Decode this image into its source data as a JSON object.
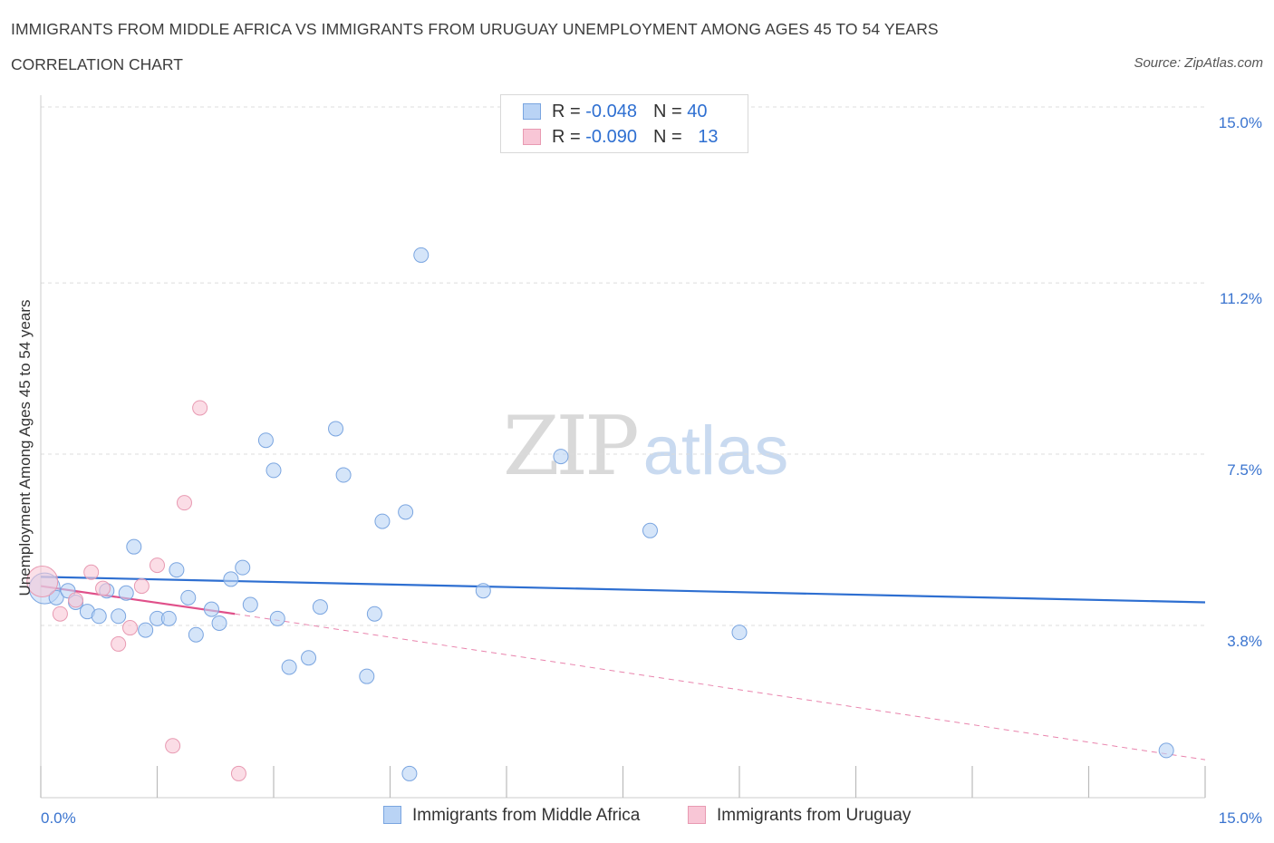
{
  "header": {
    "title": "IMMIGRANTS FROM MIDDLE AFRICA VS IMMIGRANTS FROM URUGUAY UNEMPLOYMENT AMONG AGES 45 TO 54 YEARS",
    "subtitle": "CORRELATION CHART",
    "source": "Source: ZipAtlas.com"
  },
  "watermark": {
    "zip": "ZIP",
    "atlas": "atlas"
  },
  "legend": {
    "rows": [
      {
        "r_label": "R = ",
        "r_value": "-0.048",
        "n_label": "N = ",
        "n_value": "40"
      },
      {
        "r_label": "R = ",
        "r_value": "-0.090",
        "n_label": "N = ",
        "n_value": "13"
      }
    ]
  },
  "colors": {
    "blue_fill": "#b9d3f5",
    "blue_stroke": "#7aa5e0",
    "blue_line": "#2e6fd1",
    "pink_fill": "#f8c6d6",
    "pink_stroke": "#e89ab2",
    "pink_line": "#e0508a",
    "axis_text": "#3a74cf",
    "grid": "#dcdcdc"
  },
  "chart_data": {
    "type": "scatter",
    "title": "IMMIGRANTS FROM MIDDLE AFRICA VS IMMIGRANTS FROM URUGUAY UNEMPLOYMENT AMONG AGES 45 TO 54 YEARS",
    "xlabel": "",
    "ylabel": "Unemployment Among Ages 45 to 54 years",
    "xlim": [
      0,
      15
    ],
    "ylim": [
      0,
      15
    ],
    "x_tick_labels": [
      "0.0%",
      "15.0%"
    ],
    "y_ticks": [
      {
        "value": 15.0,
        "label": "15.0%"
      },
      {
        "value": 11.2,
        "label": "11.2%"
      },
      {
        "value": 7.5,
        "label": "7.5%"
      },
      {
        "value": 3.8,
        "label": "3.8%"
      }
    ],
    "grid": true,
    "legend_position": "bottom-center",
    "series": [
      {
        "name": "Immigrants from Middle Africa",
        "color": "#b9d3f5",
        "R": -0.048,
        "N": 40,
        "trend": {
          "x": [
            0,
            15
          ],
          "y": [
            4.85,
            4.3
          ]
        },
        "points": [
          {
            "x": 0.05,
            "y": 4.6,
            "big": true
          },
          {
            "x": 0.2,
            "y": 4.4
          },
          {
            "x": 0.35,
            "y": 4.55
          },
          {
            "x": 0.45,
            "y": 4.3
          },
          {
            "x": 0.6,
            "y": 4.1
          },
          {
            "x": 0.75,
            "y": 4.0
          },
          {
            "x": 0.85,
            "y": 4.55
          },
          {
            "x": 1.0,
            "y": 4.0
          },
          {
            "x": 1.1,
            "y": 4.5
          },
          {
            "x": 1.2,
            "y": 5.5
          },
          {
            "x": 1.35,
            "y": 3.7
          },
          {
            "x": 1.5,
            "y": 3.95
          },
          {
            "x": 1.65,
            "y": 3.95
          },
          {
            "x": 1.75,
            "y": 5.0
          },
          {
            "x": 1.9,
            "y": 4.4
          },
          {
            "x": 2.0,
            "y": 3.6
          },
          {
            "x": 2.2,
            "y": 4.15
          },
          {
            "x": 2.3,
            "y": 3.85
          },
          {
            "x": 2.45,
            "y": 4.8
          },
          {
            "x": 2.6,
            "y": 5.05
          },
          {
            "x": 2.7,
            "y": 4.25
          },
          {
            "x": 2.9,
            "y": 7.8
          },
          {
            "x": 3.0,
            "y": 7.15
          },
          {
            "x": 3.05,
            "y": 3.95
          },
          {
            "x": 3.2,
            "y": 2.9
          },
          {
            "x": 3.45,
            "y": 3.1
          },
          {
            "x": 3.6,
            "y": 4.2
          },
          {
            "x": 3.8,
            "y": 8.05
          },
          {
            "x": 3.9,
            "y": 7.05
          },
          {
            "x": 4.2,
            "y": 2.7
          },
          {
            "x": 4.3,
            "y": 4.05
          },
          {
            "x": 4.4,
            "y": 6.05
          },
          {
            "x": 4.7,
            "y": 6.25
          },
          {
            "x": 4.75,
            "y": 0.6
          },
          {
            "x": 4.9,
            "y": 11.8
          },
          {
            "x": 5.7,
            "y": 4.55
          },
          {
            "x": 6.7,
            "y": 7.45
          },
          {
            "x": 7.85,
            "y": 5.85
          },
          {
            "x": 9.0,
            "y": 3.65
          },
          {
            "x": 14.5,
            "y": 1.1
          }
        ]
      },
      {
        "name": "Immigrants from Uruguay",
        "color": "#f8c6d6",
        "R": -0.09,
        "N": 13,
        "trend_solid": {
          "x": [
            0,
            2.5
          ],
          "y": [
            4.65,
            4.05
          ]
        },
        "trend_dashed": {
          "x": [
            2.5,
            15
          ],
          "y": [
            4.05,
            0.9
          ]
        },
        "points": [
          {
            "x": 0.02,
            "y": 4.75,
            "big": true
          },
          {
            "x": 0.25,
            "y": 4.05
          },
          {
            "x": 0.45,
            "y": 4.35
          },
          {
            "x": 0.65,
            "y": 4.95
          },
          {
            "x": 0.8,
            "y": 4.6
          },
          {
            "x": 1.0,
            "y": 3.4
          },
          {
            "x": 1.15,
            "y": 3.75
          },
          {
            "x": 1.3,
            "y": 4.65
          },
          {
            "x": 1.5,
            "y": 5.1
          },
          {
            "x": 1.7,
            "y": 1.2
          },
          {
            "x": 1.85,
            "y": 6.45
          },
          {
            "x": 2.05,
            "y": 8.5
          },
          {
            "x": 2.55,
            "y": 0.6
          }
        ]
      }
    ]
  },
  "bottom_legend": {
    "items": [
      {
        "label": "Immigrants from Middle Africa"
      },
      {
        "label": "Immigrants from Uruguay"
      }
    ]
  }
}
